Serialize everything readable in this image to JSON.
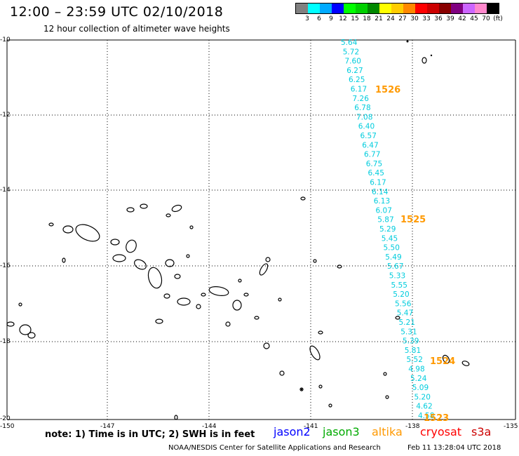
{
  "title": "12:00 – 23:59 UTC 02/10/2018",
  "subtitle": "12 hour collection of altimeter wave heights",
  "legend": {
    "colors": [
      "#808080",
      "#00ffff",
      "#00aaff",
      "#0000ff",
      "#00ff00",
      "#00d000",
      "#008800",
      "#ffff00",
      "#ffcc00",
      "#ff8800",
      "#ff0000",
      "#cc0000",
      "#880000",
      "#800080",
      "#cc66ff",
      "#ff88cc",
      "#000000"
    ],
    "labels": [
      "3",
      "6",
      "9",
      "12",
      "15",
      "18",
      "21",
      "24",
      "27",
      "30",
      "33",
      "36",
      "39",
      "42",
      "45",
      "70",
      "(ft)"
    ]
  },
  "axes": {
    "y_labels": [
      "-10",
      "-12",
      "-14",
      "-16",
      "-18",
      "-20"
    ],
    "x_labels": [
      "-150",
      "-147",
      "-144",
      "-141",
      "-138",
      "-135"
    ]
  },
  "wave_heights": [
    "5.64",
    "5.72",
    "7.60",
    "6.27",
    "6.25",
    "6.17",
    "7.26",
    "6.78",
    "7.08",
    "6.40",
    "6.57",
    "6.47",
    "6.77",
    "6.75",
    "6.45",
    "6.17",
    "6.14",
    "6.13",
    "6.07",
    "5.87",
    "5.29",
    "5.45",
    "5.50",
    "5.49",
    "5.67",
    "5.33",
    "5.55",
    "5.20",
    "5.56",
    "5.47",
    "5.21",
    "5.31",
    "5.39",
    "5.81",
    "5.52",
    "4.98",
    "5.24",
    "5.09",
    "5.20",
    "4.62",
    "4.58"
  ],
  "track_labels": [
    "1526",
    "1525",
    "1524",
    "1523"
  ],
  "colors": {
    "wave_text": "#00ccdd",
    "track_label": "#ff9900",
    "grid": "#000000"
  },
  "note": "note:  1) Time is in UTC;  2) SWH is in feet",
  "satellites": [
    {
      "name": "jason2",
      "color": "#0000ff"
    },
    {
      "name": "jason3",
      "color": "#00aa00"
    },
    {
      "name": "altika",
      "color": "#ff9900"
    },
    {
      "name": "cryosat",
      "color": "#ff0000"
    },
    {
      "name": "s3a",
      "color": "#cc0000"
    }
  ],
  "credit": "NOAA/NESDIS Center for Satellite Applications and Research",
  "timestamp": "Feb 11 13:28:04 UTC 2018"
}
